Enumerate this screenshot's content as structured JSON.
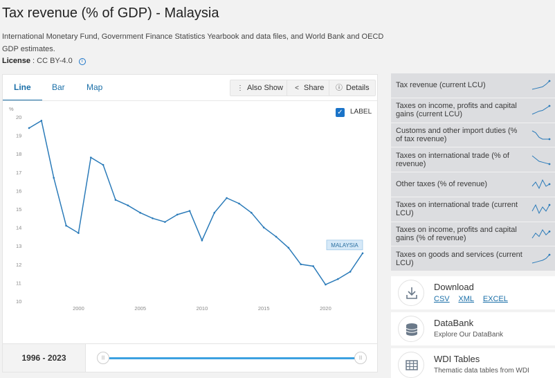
{
  "page": {
    "title": "Tax revenue (% of GDP) - Malaysia",
    "source": "International Monetary Fund, Government Finance Statistics Yearbook and data files, and World Bank and OECD GDP estimates.",
    "license_label": "License",
    "license_value": ": CC BY-4.0",
    "info_icon": "info-icon"
  },
  "tabs": [
    {
      "label": "Line",
      "active": true
    },
    {
      "label": "Bar",
      "active": false
    },
    {
      "label": "Map",
      "active": false
    }
  ],
  "toolbar": {
    "also_show": "Also Show",
    "share": "Share",
    "details": "Details"
  },
  "label_checkbox": {
    "label": "LABEL",
    "checked": true
  },
  "range": {
    "label": "1996 - 2023",
    "start": 1996,
    "end": 2023
  },
  "colors": {
    "line": "#2b7bb9",
    "accent": "#1a73c8",
    "track": "#3ba0e0",
    "tag_bg": "#d6e9f8"
  },
  "chart_data": {
    "type": "line",
    "ylabel": "%",
    "ylim": [
      10,
      20
    ],
    "xlim": [
      1996,
      2023
    ],
    "yticks": [
      "10",
      "11",
      "12",
      "13",
      "14",
      "15",
      "16",
      "17",
      "18",
      "19",
      "20"
    ],
    "xticks": [
      "2000",
      "2005",
      "2010",
      "2015",
      "2020"
    ],
    "series": [
      {
        "name": "MALAYSIA",
        "x": [
          1996,
          1997,
          1998,
          1999,
          2000,
          2001,
          2002,
          2003,
          2004,
          2005,
          2006,
          2007,
          2008,
          2009,
          2010,
          2011,
          2012,
          2013,
          2014,
          2015,
          2016,
          2017,
          2018,
          2019,
          2020,
          2021,
          2022,
          2023
        ],
        "values": [
          19.4,
          19.8,
          16.7,
          14.1,
          13.7,
          17.8,
          17.4,
          15.5,
          15.2,
          14.8,
          14.5,
          14.3,
          14.7,
          14.9,
          13.3,
          14.8,
          15.6,
          15.3,
          14.8,
          14.0,
          13.5,
          12.9,
          12.0,
          11.9,
          10.9,
          11.2,
          11.6,
          12.6
        ]
      }
    ]
  },
  "related": [
    {
      "label": "Tax revenue (current LCU)",
      "spark": [
        3,
        4,
        5,
        6,
        9,
        13
      ]
    },
    {
      "label": "Taxes on income, profits and capital gains (current LCU)",
      "spark": [
        2,
        4,
        6,
        7,
        10,
        13
      ]
    },
    {
      "label": "Customs and other import duties (% of tax revenue)",
      "spark": [
        12,
        10,
        5,
        3,
        3,
        3
      ]
    },
    {
      "label": "Taxes on international trade (% of revenue)",
      "spark": [
        12,
        9,
        6,
        5,
        4,
        3
      ]
    },
    {
      "label": "Other taxes (% of revenue)",
      "spark": [
        6,
        8,
        5,
        9,
        6,
        7
      ]
    },
    {
      "label": "Taxes on international trade (current LCU)",
      "spark": [
        6,
        9,
        5,
        8,
        6,
        9
      ]
    },
    {
      "label": "Taxes on income, profits and capital gains (% of revenue)",
      "spark": [
        5,
        8,
        6,
        10,
        7,
        9
      ]
    },
    {
      "label": "Taxes on goods and services (current LCU)",
      "spark": [
        3,
        4,
        5,
        6,
        8,
        12
      ]
    }
  ],
  "download": {
    "title": "Download",
    "links": [
      "CSV",
      "XML",
      "EXCEL"
    ],
    "icon": "download-icon"
  },
  "databank": {
    "title": "DataBank",
    "subtitle": "Explore Our DataBank",
    "icon": "database-icon"
  },
  "wdi": {
    "title": "WDI Tables",
    "subtitle": "Thematic data tables from WDI",
    "icon": "table-icon"
  }
}
